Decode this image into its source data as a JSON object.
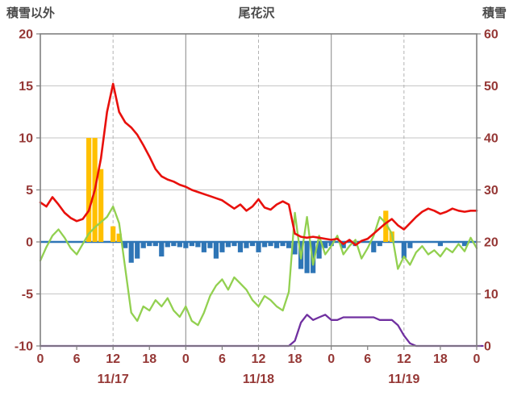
{
  "header": {
    "left_axis_title": "積雪以外",
    "title": "尾花沢",
    "right_axis_title": "積雪"
  },
  "chart_data": {
    "type": "line",
    "title": "尾花沢",
    "left_axis": {
      "label": "積雪以外",
      "min": -10,
      "max": 20,
      "ticks": [
        20,
        15,
        10,
        5,
        0,
        -5,
        -10
      ]
    },
    "right_axis": {
      "label": "積雪",
      "min": 0,
      "max": 60,
      "ticks": [
        60,
        50,
        40,
        30,
        20,
        10,
        0
      ]
    },
    "x_axis": {
      "min_hour": 0,
      "max_hour": 72,
      "hour_ticks": [
        0,
        6,
        12,
        18,
        24,
        30,
        36,
        42,
        48,
        54,
        60,
        66,
        72
      ],
      "hour_labels": [
        "0",
        "6",
        "12",
        "18",
        "0",
        "6",
        "12",
        "18",
        "0",
        "6",
        "12",
        "18",
        "0"
      ],
      "day_labels": [
        {
          "label": "11/17",
          "hour": 12
        },
        {
          "label": "11/18",
          "hour": 36
        },
        {
          "label": "11/19",
          "hour": 60
        }
      ],
      "solid_grid_hours": [
        24,
        48
      ],
      "dashed_grid_hours": [
        12,
        36,
        60
      ]
    },
    "series": [
      {
        "name": "orange-bars",
        "type": "bar",
        "axis": "left",
        "color": "#FFC000",
        "values": [
          0,
          0,
          0,
          0,
          0,
          0,
          0,
          0,
          10,
          10,
          7,
          0,
          1.5,
          0.8,
          0,
          0,
          0,
          0,
          0,
          0,
          0,
          0,
          0,
          0,
          0,
          0,
          0,
          0,
          0,
          0,
          0,
          0,
          0,
          0,
          0,
          0,
          0,
          0,
          0,
          0,
          0,
          0,
          0,
          0,
          0,
          0,
          0,
          0,
          0,
          0,
          0,
          0,
          0,
          0,
          0,
          0,
          0,
          3,
          1,
          0,
          0,
          0,
          0,
          0,
          0,
          0,
          0,
          0,
          0,
          0,
          0,
          0,
          0
        ]
      },
      {
        "name": "blue-bars",
        "type": "bar",
        "axis": "left",
        "color": "#2E75B6",
        "values": [
          0,
          0,
          0,
          0,
          0,
          0,
          0,
          0,
          0,
          0,
          0,
          0,
          0,
          0,
          -0.6,
          -2.0,
          -1.6,
          -0.6,
          -0.4,
          -0.4,
          -1.4,
          -0.5,
          -0.4,
          -0.5,
          -0.6,
          -0.4,
          -0.5,
          -1.0,
          -0.6,
          -1.6,
          -1.0,
          -0.5,
          -0.4,
          -1.0,
          -0.6,
          -0.4,
          -1.0,
          -0.5,
          -0.4,
          -0.6,
          -0.4,
          -0.6,
          -1.2,
          -2.6,
          -3.0,
          -3.0,
          -1.6,
          -0.6,
          -0.4,
          0,
          -0.6,
          0,
          -0.4,
          0,
          0,
          -1.0,
          -0.4,
          0,
          0,
          0,
          -1.6,
          -0.6,
          0,
          0,
          0,
          0,
          -0.4,
          0,
          0,
          0,
          -0.4,
          0,
          0
        ]
      },
      {
        "name": "green-line",
        "type": "line",
        "axis": "left",
        "color": "#92D050",
        "values": [
          -1.8,
          -0.5,
          0.6,
          1.2,
          0.4,
          -0.6,
          -1.2,
          -0.2,
          0.8,
          1.4,
          1.9,
          2.4,
          3.4,
          1.8,
          -2.5,
          -6.8,
          -7.6,
          -6.2,
          -6.6,
          -5.6,
          -6.2,
          -5.4,
          -6.6,
          -7.2,
          -6.2,
          -7.6,
          -8.0,
          -6.8,
          -5.2,
          -4.2,
          -3.6,
          -4.6,
          -3.4,
          -4.0,
          -4.6,
          -5.6,
          -6.2,
          -5.2,
          -5.6,
          -6.2,
          -6.6,
          -4.8,
          2.8,
          -1.6,
          2.4,
          -2.2,
          0.6,
          -1.2,
          -0.4,
          0.6,
          -1.2,
          -0.4,
          0.2,
          -1.6,
          -0.6,
          0.6,
          2.4,
          1.8,
          0.8,
          -2.6,
          -1.4,
          -2.2,
          -1.0,
          -0.4,
          -1.2,
          -0.8,
          -1.4,
          -0.6,
          -1.0,
          -0.2,
          -0.9,
          0.4,
          -0.6
        ]
      },
      {
        "name": "red-line",
        "type": "line",
        "axis": "left",
        "color": "#E8100C",
        "values": [
          3.8,
          3.4,
          4.3,
          3.6,
          2.8,
          2.3,
          2.0,
          2.2,
          3.0,
          5.0,
          8.0,
          12.5,
          15.2,
          12.5,
          11.5,
          11.0,
          10.3,
          9.3,
          8.2,
          7.0,
          6.3,
          6.0,
          5.8,
          5.5,
          5.3,
          5.0,
          4.8,
          4.6,
          4.4,
          4.2,
          4.0,
          3.6,
          3.2,
          3.6,
          3.0,
          3.4,
          4.1,
          3.3,
          3.1,
          3.6,
          3.9,
          3.6,
          0.8,
          0.5,
          0.4,
          0.5,
          0.4,
          0.3,
          0.2,
          0.3,
          -0.2,
          0.2,
          -0.3,
          0.1,
          0.3,
          0.8,
          1.3,
          1.8,
          2.2,
          1.6,
          1.2,
          1.8,
          2.4,
          2.9,
          3.2,
          3.0,
          2.7,
          2.9,
          3.2,
          3.0,
          2.9,
          3.0,
          3.0
        ]
      },
      {
        "name": "purple-line",
        "type": "line",
        "axis": "right",
        "color": "#7030A0",
        "values": [
          0,
          0,
          0,
          0,
          0,
          0,
          0,
          0,
          0,
          0,
          0,
          0,
          0,
          0,
          0,
          0,
          0,
          0,
          0,
          0,
          0,
          0,
          0,
          0,
          0,
          0,
          0,
          0,
          0,
          0,
          0,
          0,
          0,
          0,
          0,
          0,
          0,
          0,
          0,
          0,
          0,
          0,
          1,
          4.5,
          6,
          5,
          5.5,
          6,
          5,
          5,
          5.5,
          5.5,
          5.5,
          5.5,
          5.5,
          5.5,
          5,
          5,
          5,
          4,
          2,
          0.5,
          0,
          0,
          0,
          0,
          0,
          0,
          0,
          0,
          0,
          0,
          0,
          0
        ]
      }
    ],
    "colors": {
      "axis_label": "#953735",
      "grid": "#c6c6c6",
      "grid_day": "#9a9a9a",
      "frame": "#808080",
      "zero_line": "#2E75B6",
      "background": "#ffffff"
    },
    "legend": "none",
    "grid": "on"
  }
}
